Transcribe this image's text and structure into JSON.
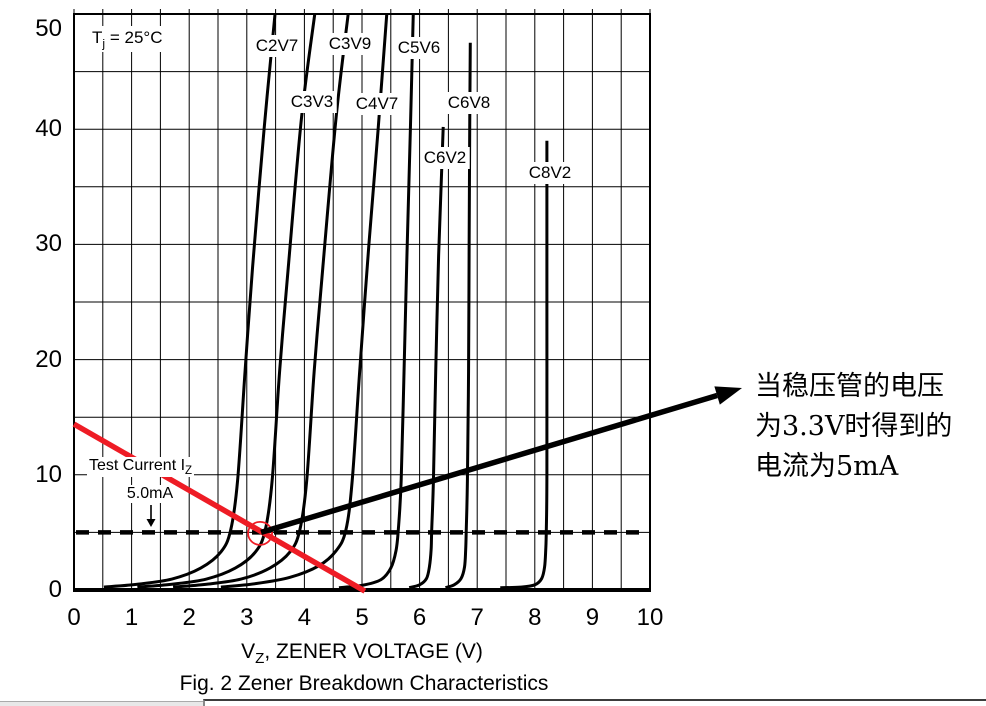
{
  "chart_data": {
    "type": "line",
    "title": "Zener Breakdown Characteristics",
    "figure_caption": "Fig. 2  Zener Breakdown Characteristics",
    "condition": {
      "pre": "T",
      "sub": "j",
      "post": " = 25°C"
    },
    "xlabel": {
      "pre": "V",
      "sub": "Z",
      "post": ", ZENER VOLTAGE (V)"
    },
    "ylabel": "",
    "xlim": [
      0,
      10
    ],
    "ylim": [
      0,
      50
    ],
    "x_ticks": [
      0,
      1,
      2,
      3,
      4,
      5,
      6,
      7,
      8,
      9,
      10
    ],
    "y_ticks": [
      0,
      10,
      20,
      30,
      40,
      50
    ],
    "x_minor_grid_step": 0.5,
    "y_grid_step": 5,
    "grid": true,
    "curves": [
      {
        "label": "C2V7",
        "vz": 2.7,
        "points": [
          [
            0.52,
            0.25
          ],
          [
            1.1,
            0.5
          ],
          [
            1.7,
            0.95
          ],
          [
            2.2,
            1.9
          ],
          [
            2.55,
            3.3
          ],
          [
            2.72,
            5.2
          ],
          [
            2.84,
            9.5
          ],
          [
            2.97,
            19
          ],
          [
            3.1,
            28
          ],
          [
            3.3,
            40
          ],
          [
            3.49,
            50
          ]
        ]
      },
      {
        "label": "C3V3",
        "vz": 3.3,
        "points": [
          [
            1.1,
            0.25
          ],
          [
            1.7,
            0.5
          ],
          [
            2.3,
            0.95
          ],
          [
            2.8,
            1.9
          ],
          [
            3.15,
            3.3
          ],
          [
            3.32,
            5.2
          ],
          [
            3.44,
            9.5
          ],
          [
            3.57,
            19
          ],
          [
            3.72,
            28
          ],
          [
            3.95,
            41
          ],
          [
            4.18,
            50
          ]
        ]
      },
      {
        "label": "C3V9",
        "vz": 3.9,
        "points": [
          [
            1.72,
            0.25
          ],
          [
            2.3,
            0.5
          ],
          [
            2.9,
            0.95
          ],
          [
            3.4,
            1.9
          ],
          [
            3.75,
            3.3
          ],
          [
            3.92,
            5.2
          ],
          [
            4.04,
            9.5
          ],
          [
            4.17,
            19
          ],
          [
            4.32,
            28
          ],
          [
            4.55,
            41
          ],
          [
            4.76,
            50
          ]
        ]
      },
      {
        "label": "C4V7",
        "vz": 4.7,
        "points": [
          [
            2.55,
            0.25
          ],
          [
            3.15,
            0.55
          ],
          [
            3.75,
            1.1
          ],
          [
            4.25,
            2.1
          ],
          [
            4.55,
            3.4
          ],
          [
            4.72,
            5.2
          ],
          [
            4.83,
            9.5
          ],
          [
            4.96,
            19
          ],
          [
            5.12,
            30
          ],
          [
            5.28,
            40
          ],
          [
            5.43,
            50
          ]
        ]
      },
      {
        "label": "C5V6",
        "vz": 5.6,
        "points": [
          [
            4.6,
            0.2
          ],
          [
            5.0,
            0.4
          ],
          [
            5.33,
            0.9
          ],
          [
            5.5,
            1.9
          ],
          [
            5.59,
            3.4
          ],
          [
            5.63,
            5.2
          ],
          [
            5.68,
            9.5
          ],
          [
            5.73,
            19
          ],
          [
            5.78,
            29
          ],
          [
            5.84,
            40
          ],
          [
            5.89,
            50
          ]
        ]
      },
      {
        "label": "C6V2",
        "vz": 6.2,
        "points": [
          [
            5.82,
            0.2
          ],
          [
            6.0,
            0.45
          ],
          [
            6.12,
            1.0
          ],
          [
            6.17,
            2.0
          ],
          [
            6.2,
            3.5
          ],
          [
            6.21,
            5.2
          ],
          [
            6.24,
            9.5
          ],
          [
            6.28,
            19
          ],
          [
            6.33,
            29
          ],
          [
            6.38,
            36
          ],
          [
            6.41,
            40.2
          ]
        ]
      },
      {
        "label": "C6V8",
        "vz": 6.8,
        "points": [
          [
            6.45,
            0.2
          ],
          [
            6.6,
            0.45
          ],
          [
            6.72,
            1.0
          ],
          [
            6.78,
            2.0
          ],
          [
            6.8,
            3.5
          ],
          [
            6.81,
            5.2
          ],
          [
            6.83,
            9.5
          ],
          [
            6.85,
            19
          ],
          [
            6.86,
            30
          ],
          [
            6.87,
            40
          ],
          [
            6.88,
            47.5
          ]
        ]
      },
      {
        "label": "C8V2",
        "vz": 8.2,
        "points": [
          [
            7.4,
            0.2
          ],
          [
            7.75,
            0.25
          ],
          [
            8.0,
            0.45
          ],
          [
            8.12,
            1.0
          ],
          [
            8.17,
            2.0
          ],
          [
            8.19,
            3.5
          ],
          [
            8.2,
            5.2
          ],
          [
            8.21,
            10
          ],
          [
            8.21,
            25
          ],
          [
            8.21,
            39
          ]
        ]
      }
    ],
    "test_current": {
      "label_pre": "Test Current I",
      "label_sub": "Z",
      "value_label": "5.0mA",
      "i": 5
    },
    "load_line": {
      "color": "#ee1c25",
      "points": [
        [
          0,
          14.4
        ],
        [
          5.05,
          -0.1
        ]
      ]
    },
    "intersection": {
      "v": 3.3,
      "i": 5,
      "marker": "red-circle"
    },
    "annotation": {
      "lines": [
        "当稳压管的电压",
        "为3.3V时得到的",
        "电流为5mA"
      ]
    }
  }
}
